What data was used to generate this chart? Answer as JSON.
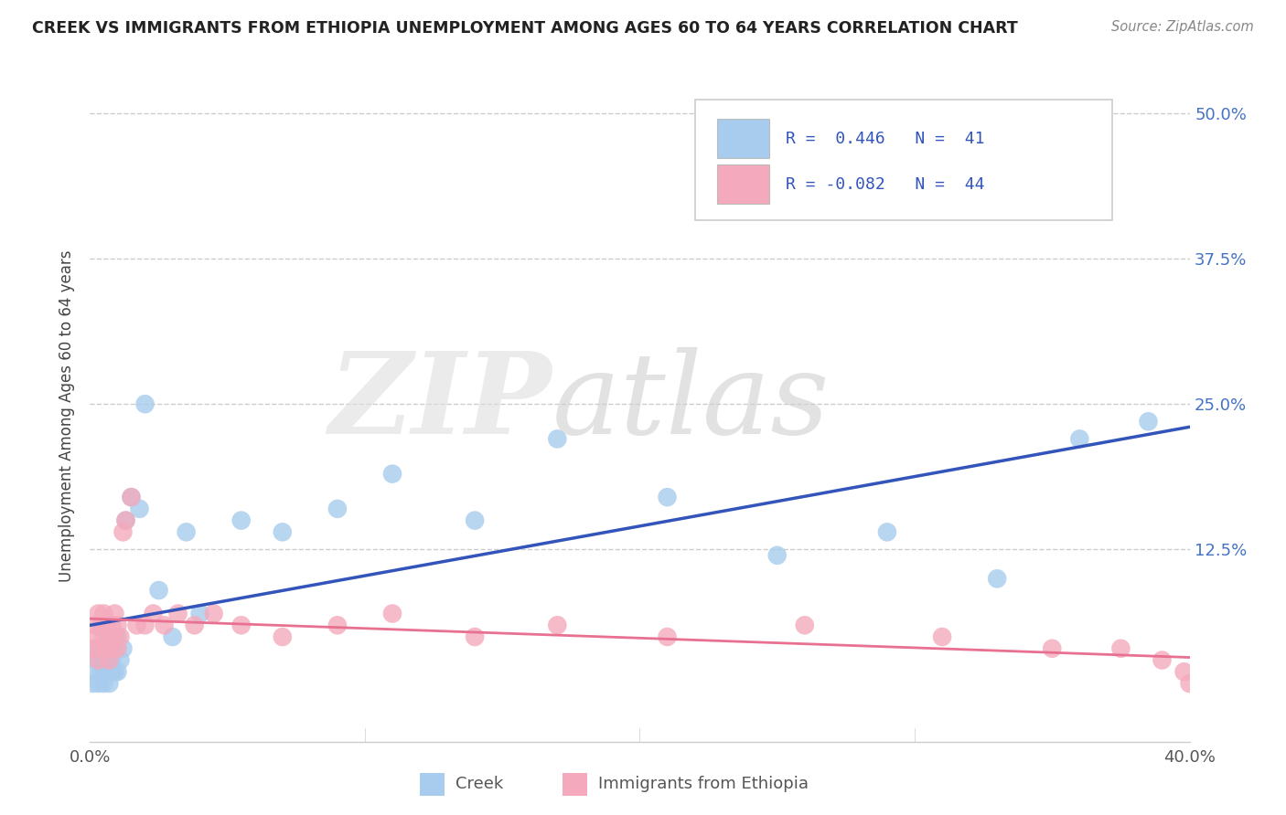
{
  "title": "CREEK VS IMMIGRANTS FROM ETHIOPIA UNEMPLOYMENT AMONG AGES 60 TO 64 YEARS CORRELATION CHART",
  "source": "Source: ZipAtlas.com",
  "ylabel": "Unemployment Among Ages 60 to 64 years",
  "xlim": [
    0.0,
    0.4
  ],
  "ylim": [
    -0.04,
    0.52
  ],
  "ytick_labels": [
    "50.0%",
    "37.5%",
    "25.0%",
    "12.5%"
  ],
  "ytick_vals": [
    0.5,
    0.375,
    0.25,
    0.125
  ],
  "creek_R": 0.446,
  "creek_N": 41,
  "ethiopia_R": -0.082,
  "ethiopia_N": 44,
  "creek_color": "#A8CCEE",
  "ethiopia_color": "#F4AABC",
  "creek_line_color": "#3355BB",
  "ethiopia_line_color": "#E87090",
  "creek_x": [
    0.001,
    0.002,
    0.002,
    0.003,
    0.003,
    0.004,
    0.004,
    0.005,
    0.005,
    0.006,
    0.006,
    0.007,
    0.007,
    0.008,
    0.008,
    0.009,
    0.009,
    0.01,
    0.01,
    0.011,
    0.012,
    0.013,
    0.015,
    0.018,
    0.02,
    0.025,
    0.03,
    0.035,
    0.04,
    0.055,
    0.07,
    0.09,
    0.11,
    0.14,
    0.17,
    0.21,
    0.25,
    0.29,
    0.33,
    0.36,
    0.385
  ],
  "creek_y": [
    0.01,
    0.02,
    0.03,
    0.01,
    0.04,
    0.02,
    0.03,
    0.01,
    0.04,
    0.02,
    0.03,
    0.01,
    0.05,
    0.02,
    0.03,
    0.02,
    0.04,
    0.02,
    0.05,
    0.03,
    0.04,
    0.15,
    0.17,
    0.16,
    0.25,
    0.09,
    0.05,
    0.14,
    0.07,
    0.15,
    0.14,
    0.16,
    0.19,
    0.15,
    0.22,
    0.17,
    0.12,
    0.14,
    0.1,
    0.22,
    0.235
  ],
  "ethiopia_x": [
    0.001,
    0.002,
    0.002,
    0.003,
    0.003,
    0.004,
    0.004,
    0.005,
    0.005,
    0.006,
    0.006,
    0.007,
    0.007,
    0.008,
    0.008,
    0.009,
    0.009,
    0.01,
    0.01,
    0.011,
    0.012,
    0.013,
    0.015,
    0.017,
    0.02,
    0.023,
    0.027,
    0.032,
    0.038,
    0.045,
    0.055,
    0.07,
    0.09,
    0.11,
    0.14,
    0.17,
    0.21,
    0.26,
    0.31,
    0.35,
    0.375,
    0.39,
    0.398,
    0.4
  ],
  "ethiopia_y": [
    0.04,
    0.05,
    0.06,
    0.03,
    0.07,
    0.04,
    0.06,
    0.05,
    0.07,
    0.04,
    0.06,
    0.03,
    0.05,
    0.04,
    0.06,
    0.05,
    0.07,
    0.04,
    0.06,
    0.05,
    0.14,
    0.15,
    0.17,
    0.06,
    0.06,
    0.07,
    0.06,
    0.07,
    0.06,
    0.07,
    0.06,
    0.05,
    0.06,
    0.07,
    0.05,
    0.06,
    0.05,
    0.06,
    0.05,
    0.04,
    0.04,
    0.03,
    0.02,
    0.01
  ],
  "legend_creek_label": "Creek",
  "legend_ethiopia_label": "Immigrants from Ethiopia"
}
